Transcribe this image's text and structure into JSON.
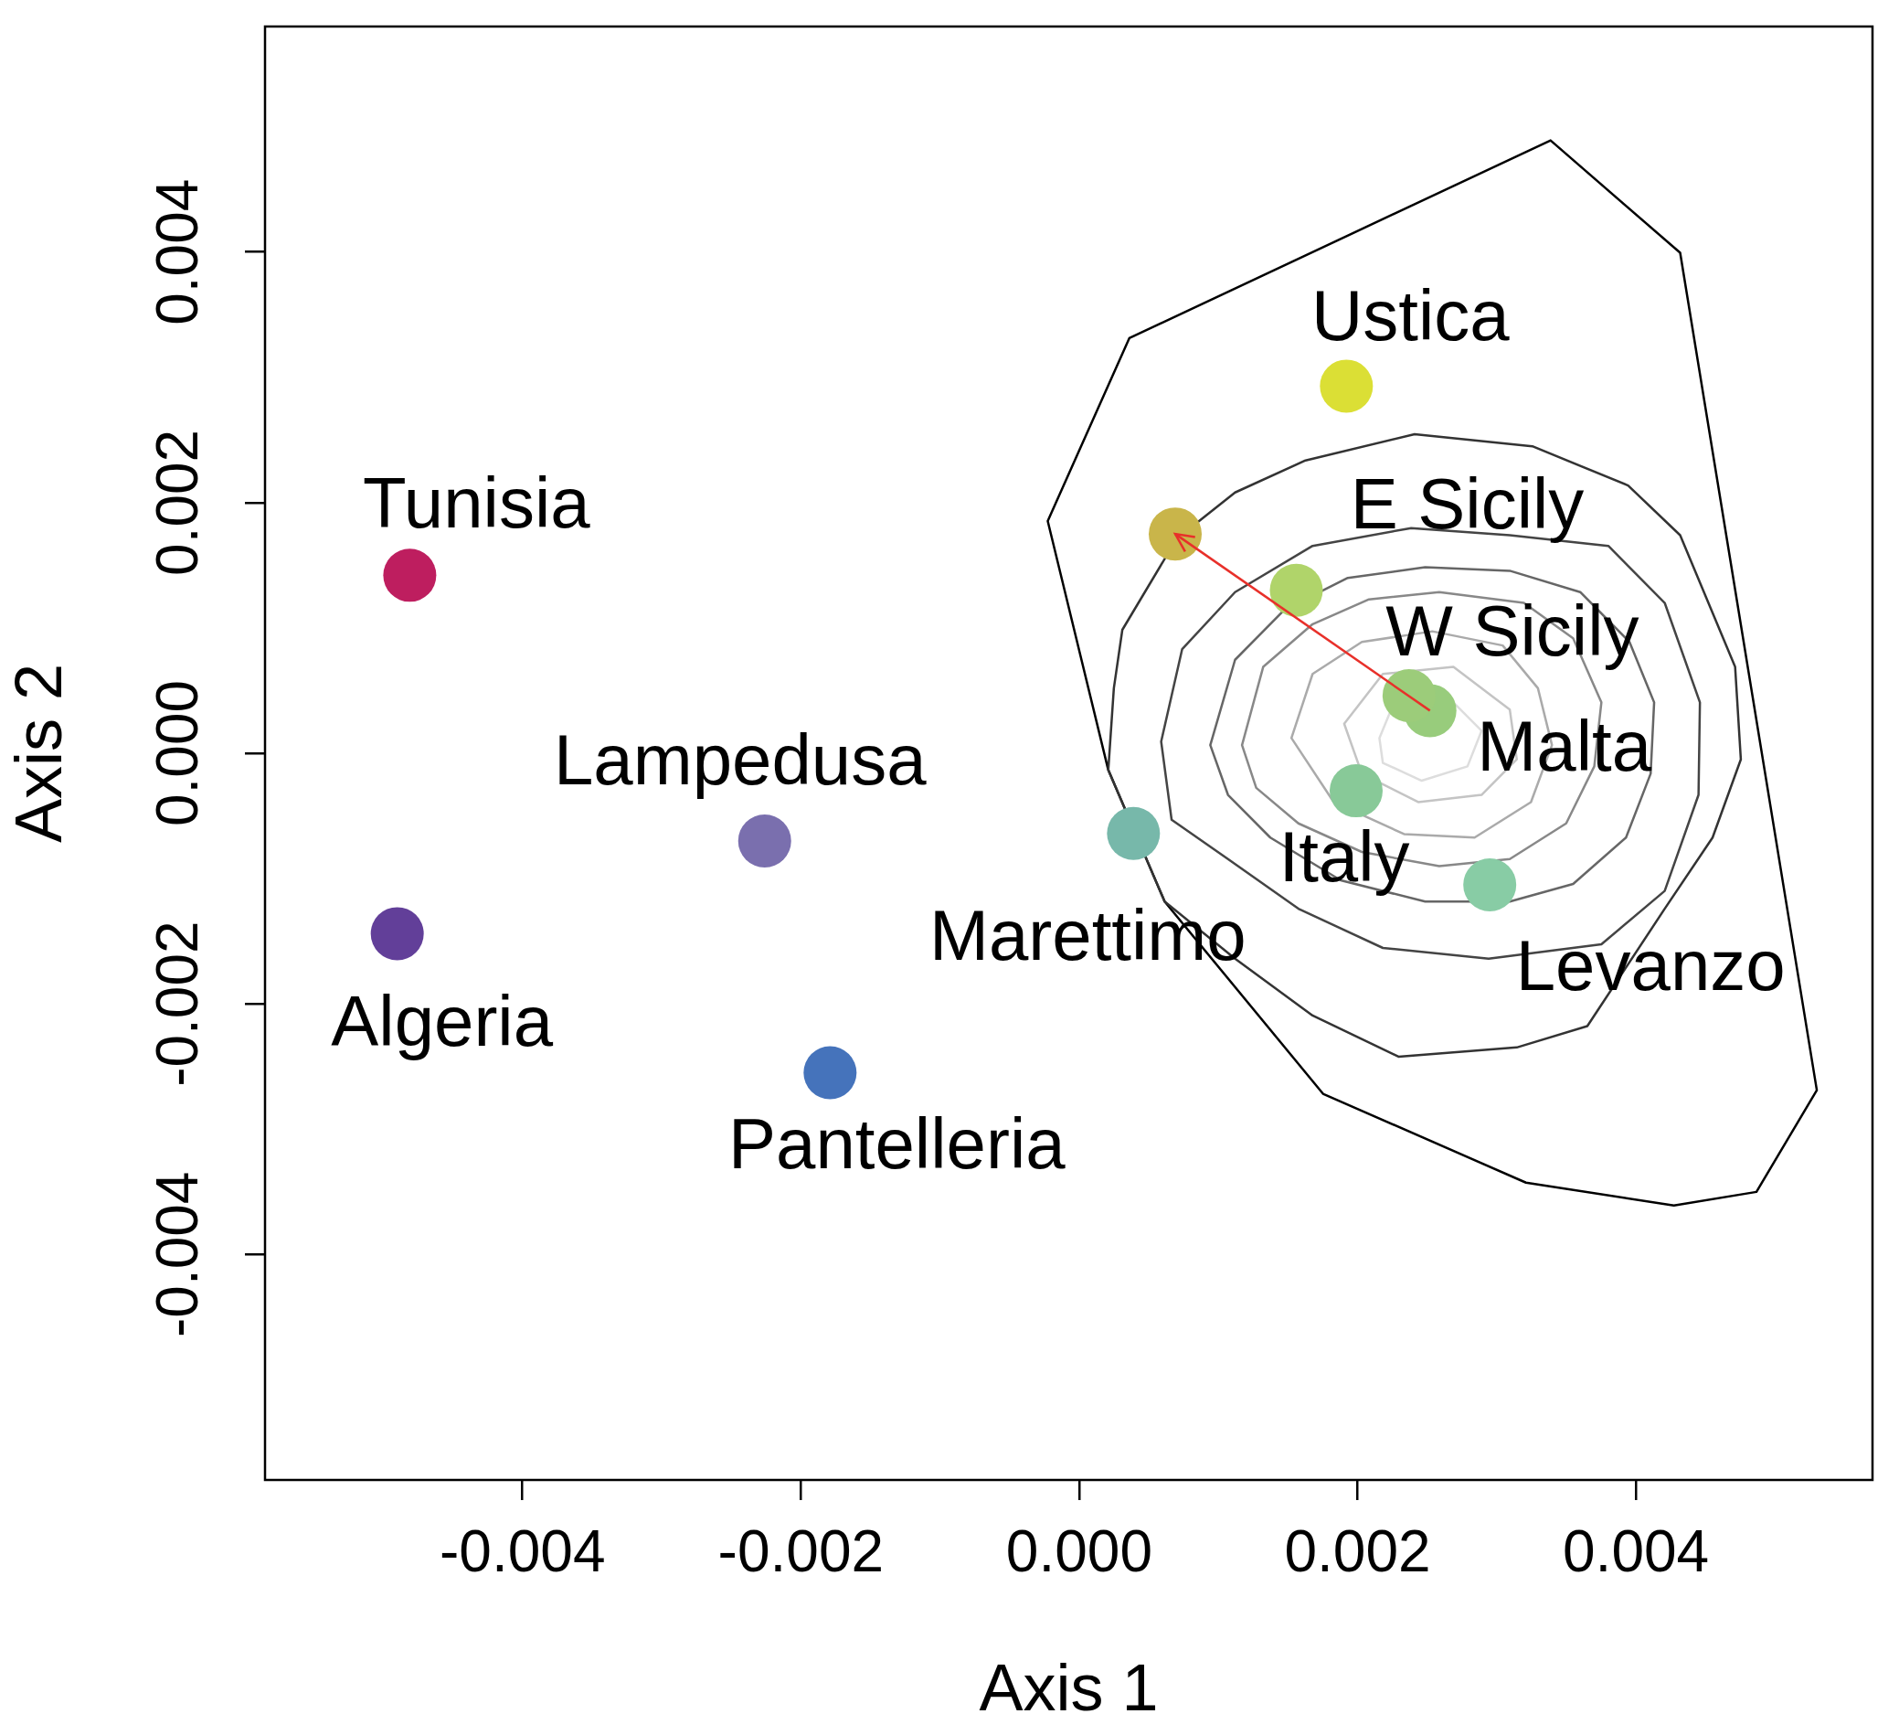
{
  "chart_data": {
    "type": "scatter",
    "xlabel": "Axis 1",
    "ylabel": "Axis 2",
    "marker": "circle",
    "grid": false,
    "legend": false,
    "xlim": [
      -0.00585,
      0.0057
    ],
    "ylim": [
      -0.0058,
      0.0058
    ],
    "xticks": [
      {
        "value": -0.004,
        "label": "-0.004"
      },
      {
        "value": -0.002,
        "label": "-0.002"
      },
      {
        "value": 0,
        "label": "0.000"
      },
      {
        "value": 0.002,
        "label": "0.002"
      },
      {
        "value": 0.004,
        "label": "0.004"
      }
    ],
    "yticks": [
      {
        "value": -0.004,
        "label": "-0.004"
      },
      {
        "value": -0.002,
        "label": "-0.002"
      },
      {
        "value": 0,
        "label": "0.000"
      },
      {
        "value": 0.002,
        "label": "0.002"
      },
      {
        "value": 0.004,
        "label": "0.004"
      }
    ],
    "series": [
      {
        "name": "Tunisia",
        "color": "#be1e5f",
        "x": [
          -0.00481
        ],
        "values": [
          0.00142
        ]
      },
      {
        "name": "Lampedusa",
        "color": "#7a6fae",
        "x": [
          -0.00226
        ],
        "values": [
          -0.0007
        ]
      },
      {
        "name": "Algeria",
        "color": "#623f99",
        "x": [
          -0.0049
        ],
        "values": [
          -0.00144
        ]
      },
      {
        "name": "Pantelleria",
        "color": "#4573bb",
        "x": [
          -0.00179
        ],
        "values": [
          -0.00255
        ]
      },
      {
        "name": "Marettimo",
        "color": "#77b8aa",
        "x": [
          0.00039
        ],
        "values": [
          -0.00064
        ]
      },
      {
        "name": "Ustica",
        "color": "#dbdf35",
        "x": [
          0.00192
        ],
        "values": [
          0.00293
        ]
      },
      {
        "color": "#c9b54a",
        "x": [
          0.00069
        ],
        "values": [
          0.00175
        ]
      },
      {
        "name": "E Sicily",
        "color": "#b0d46a",
        "x": [
          0.00156
        ],
        "values": [
          0.0013
        ]
      },
      {
        "name": "W Sicily",
        "color": "#9ccc7a",
        "x": [
          0.00237
        ],
        "values": [
          0.00046
        ]
      },
      {
        "name": "Malta",
        "color": "#98cc7c",
        "x": [
          0.00252
        ],
        "values": [
          0.00034
        ]
      },
      {
        "name": "Italy",
        "color": "#88c998",
        "x": [
          0.00199
        ],
        "values": [
          -0.0003
        ]
      },
      {
        "name": "Levanzo",
        "color": "#88cca5",
        "x": [
          0.00295
        ],
        "values": [
          -0.00105
        ]
      }
    ]
  }
}
